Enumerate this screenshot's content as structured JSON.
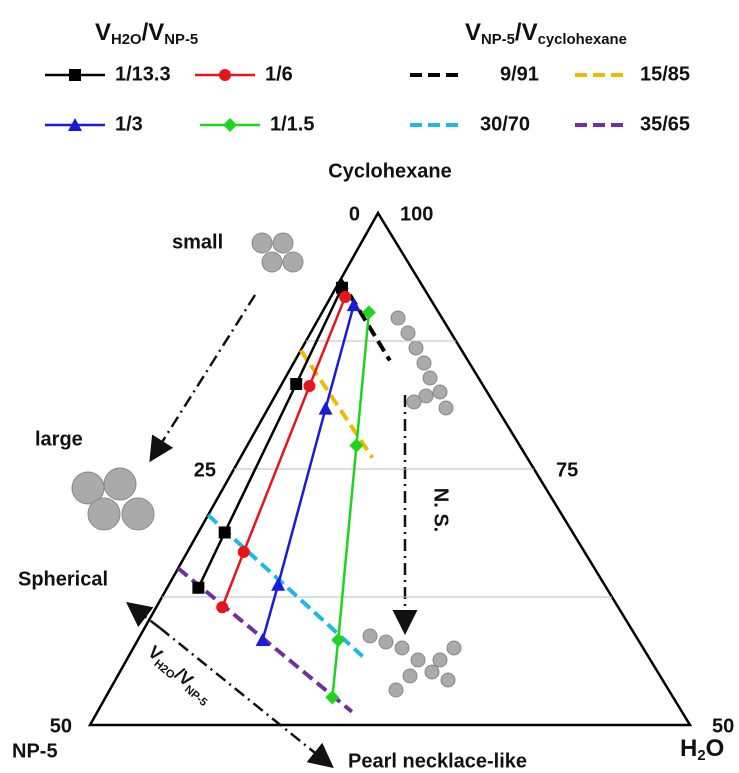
{
  "chart_data": {
    "type": "ternary",
    "vertex_labels": {
      "top": "Cyclohexane",
      "left": "NP-5",
      "right": [
        "H",
        "2",
        "O"
      ]
    },
    "left_lim": [
      0,
      50
    ],
    "left_ticks": [
      0,
      25,
      50
    ],
    "right_lim": [
      100,
      50
    ],
    "right_ticks": [
      100,
      75,
      50
    ],
    "grid_levels": [
      12.5,
      25,
      37.5
    ],
    "legend_title": [
      "V",
      "H2O",
      "/V",
      "NP-5"
    ],
    "series": [
      {
        "name": "1/13.3",
        "color": "#000000",
        "marker": "square",
        "np5": [
          6.8,
          15.5,
          29.0,
          34.0
        ],
        "h2o": [
          0.5,
          1.2,
          2.2,
          2.6
        ]
      },
      {
        "name": "1/6",
        "color": "#e8141b",
        "marker": "circle",
        "np5": [
          7.0,
          14.5,
          28.4,
          33.0
        ],
        "h2o": [
          1.2,
          2.4,
          4.7,
          5.5
        ]
      },
      {
        "name": "1/3",
        "color": "#1a1adb",
        "marker": "triangle",
        "np5": [
          6.7,
          14.3,
          27.2,
          31.3
        ],
        "h2o": [
          2.3,
          4.8,
          9.1,
          10.4
        ]
      },
      {
        "name": "1/1.5",
        "color": "#1fd41f",
        "marker": "diamond",
        "np5": [
          5.8,
          13.6,
          25.0,
          28.4
        ],
        "h2o": [
          3.9,
          9.1,
          16.7,
          18.9
        ]
      }
    ],
    "dashed_legend_title": [
      "V",
      "NP-5",
      "/V",
      "cyclohexane"
    ],
    "dashed_series": [
      {
        "name": "9/91",
        "color": "#000000",
        "np5": [
          6.5,
          6.5
        ],
        "h2o": [
          0,
          7.9
        ]
      },
      {
        "name": "15/85",
        "color": "#f5b800",
        "np5": [
          13.4,
          12.9
        ],
        "h2o": [
          0,
          11.0
        ]
      },
      {
        "name": "30/70",
        "color": "#1cb8e8",
        "np5": [
          29.5,
          23.8
        ],
        "h2o": [
          0,
          19.5
        ]
      },
      {
        "name": "35/65",
        "color": "#7030a0",
        "np5": [
          34.7,
          27.5
        ],
        "h2o": [
          0,
          21.2
        ]
      }
    ],
    "annotations": {
      "small": "small",
      "large": "large",
      "ns": "N. S.",
      "spherical": "Spherical",
      "pearl": "Pearl necklace-like",
      "ratio": [
        "V",
        "H2O",
        "/V",
        "NP-5"
      ]
    }
  }
}
